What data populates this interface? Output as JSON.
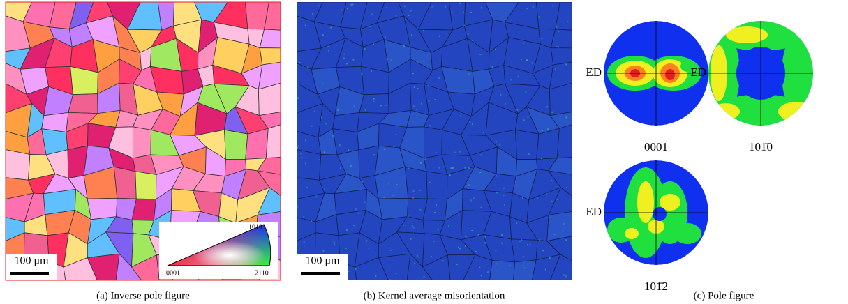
{
  "panels": [
    {
      "caption": "(a) Inverse pole figure",
      "scale_bar": "100 μm",
      "legend": {
        "top": "101̄0",
        "left": "0001",
        "right": "21̄1̄0"
      }
    },
    {
      "caption": "(b) Kernel average misorientation",
      "scale_bar": "100 μm"
    },
    {
      "caption": "(c) Pole figure",
      "pole_figures": [
        {
          "axis_label": "ED",
          "label": "0001"
        },
        {
          "axis_label": "ED",
          "label": "101̄0"
        },
        {
          "axis_label": "ED",
          "label": "101̄2"
        }
      ]
    }
  ]
}
